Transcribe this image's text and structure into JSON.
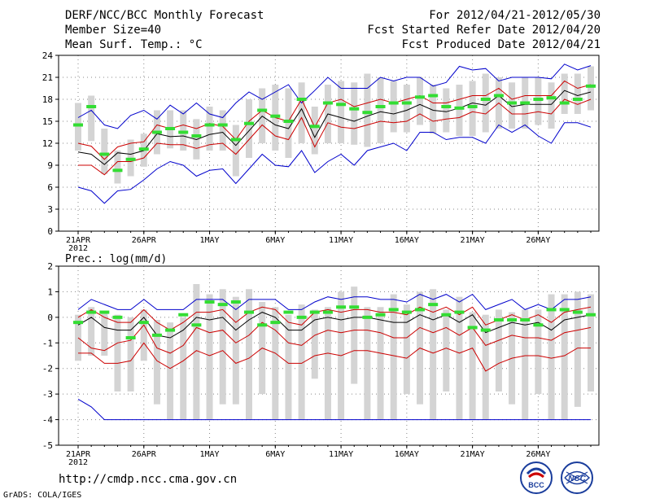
{
  "header": {
    "left": [
      "DERF/NCC/BCC Monthly Forecast",
      "Member Size=40",
      "Mean Surf. Temp.: °C"
    ],
    "right": [
      "For 2012/04/21-2012/05/30",
      "Fcst Started Refer Date 2012/04/20",
      "Fcst Produced Date 2012/04/21"
    ]
  },
  "footer": {
    "url": "http://cmdp.ncc.cma.gov.cn",
    "credit": "GrADS: COLA/IGES"
  },
  "logos": {
    "bcc": "BCC",
    "ncc": "NCC"
  },
  "colors": {
    "max": "#0000cc",
    "min": "#0000cc",
    "band": "#cc0000",
    "mean": "#000000",
    "obs": "#33dd33",
    "box": "#d4d4d4"
  },
  "chart_data": [
    {
      "type": "line",
      "title": "Mean Surf. Temp.: °C",
      "ylabel": "",
      "ylim": [
        0,
        24
      ],
      "yticks": [
        0,
        3,
        6,
        9,
        12,
        15,
        18,
        21,
        24
      ],
      "xticks": [
        {
          "day": 0,
          "label": "21APR",
          "sub": "2012"
        },
        {
          "day": 5,
          "label": "26APR"
        },
        {
          "day": 10,
          "label": "1MAY"
        },
        {
          "day": 15,
          "label": "6MAY"
        },
        {
          "day": 20,
          "label": "11MAY"
        },
        {
          "day": 25,
          "label": "16MAY"
        },
        {
          "day": 30,
          "label": "21MAY"
        },
        {
          "day": 35,
          "label": "26MAY"
        }
      ],
      "grid": true,
      "series": [
        {
          "name": "max",
          "values": [
            15.5,
            16.5,
            14.5,
            14.0,
            15.8,
            16.5,
            15.3,
            17.2,
            16.0,
            17.5,
            16.0,
            15.5,
            17.5,
            19.0,
            18.0,
            19.0,
            20.0,
            17.5,
            19.2,
            21.0,
            19.5,
            19.5,
            19.5,
            21.0,
            20.5,
            21.0,
            21.0,
            19.8,
            20.3,
            22.5,
            22.0,
            22.2,
            20.5,
            21.0,
            21.0,
            21.0,
            20.8,
            22.8,
            22.0,
            22.6
          ]
        },
        {
          "name": "min",
          "values": [
            6.0,
            5.5,
            3.8,
            5.5,
            5.7,
            7.0,
            8.5,
            9.5,
            9.0,
            7.5,
            8.3,
            8.5,
            6.5,
            8.5,
            10.5,
            9.0,
            8.8,
            11.0,
            8.0,
            9.5,
            10.5,
            9.0,
            11.0,
            11.5,
            12.0,
            11.0,
            13.5,
            13.5,
            12.5,
            12.8,
            12.8,
            12.0,
            14.5,
            13.5,
            14.5,
            13.0,
            12.0,
            14.8,
            14.8,
            14.2
          ]
        },
        {
          "name": "upper",
          "values": [
            12.0,
            11.6,
            9.8,
            11.5,
            12.0,
            12.2,
            14.5,
            14.0,
            14.5,
            14.0,
            14.7,
            14.3,
            12.5,
            15.0,
            16.5,
            15.5,
            15.0,
            18.0,
            14.2,
            17.5,
            18.0,
            17.0,
            17.5,
            18.0,
            17.5,
            18.0,
            18.5,
            17.5,
            17.5,
            18.0,
            18.5,
            18.5,
            19.5,
            18.0,
            18.5,
            18.5,
            18.5,
            20.5,
            19.5,
            20.0
          ]
        },
        {
          "name": "mean",
          "values": [
            10.8,
            10.5,
            9.1,
            10.7,
            10.5,
            11.0,
            13.3,
            12.9,
            13.0,
            12.5,
            13.2,
            13.5,
            11.7,
            13.7,
            15.7,
            14.5,
            14.0,
            16.7,
            12.8,
            16.0,
            15.5,
            15.0,
            15.7,
            16.3,
            16.0,
            16.5,
            17.3,
            16.5,
            16.3,
            16.8,
            17.5,
            17.2,
            18.5,
            17.0,
            17.3,
            17.3,
            17.3,
            19.2,
            18.5,
            19.0
          ]
        },
        {
          "name": "lower",
          "values": [
            9.0,
            9.0,
            7.7,
            9.5,
            9.5,
            10.0,
            12.0,
            11.8,
            11.8,
            11.3,
            11.8,
            12.0,
            10.5,
            12.5,
            14.5,
            13.0,
            12.5,
            15.5,
            11.5,
            14.8,
            14.2,
            14.0,
            14.5,
            15.0,
            14.8,
            15.0,
            16.0,
            15.0,
            15.3,
            15.5,
            16.3,
            16.0,
            17.5,
            16.0,
            16.0,
            16.3,
            16.0,
            18.0,
            17.3,
            18.0
          ]
        },
        {
          "name": "obs",
          "values": [
            14.5,
            17.0,
            10.5,
            8.3,
            9.8,
            11.2,
            13.5,
            14.0,
            13.5,
            13.0,
            14.5,
            14.5,
            12.5,
            14.7,
            16.5,
            15.7,
            15.0,
            18.0,
            14.3,
            17.5,
            17.3,
            16.7,
            16.2,
            17.0,
            17.5,
            17.5,
            18.3,
            18.5,
            17.0,
            16.8,
            17.0,
            18.0,
            18.5,
            17.5,
            17.5,
            18.0,
            18.2,
            17.5,
            18.0,
            19.8
          ]
        },
        {
          "name": "box_high",
          "values": [
            17.5,
            18.5,
            14.0,
            11.0,
            12.5,
            13.3,
            16.5,
            16.5,
            16.5,
            15.3,
            17.0,
            16.5,
            14.5,
            18.0,
            19.5,
            20.0,
            19.5,
            20.3,
            17.0,
            20.0,
            20.5,
            20.3,
            21.5,
            21.0,
            20.5,
            20.0,
            21.0,
            20.0,
            19.5,
            20.0,
            20.5,
            21.5,
            21.0,
            20.3,
            21.0,
            21.0,
            20.3,
            21.5,
            21.5,
            22.5
          ]
        },
        {
          "name": "box_low",
          "values": [
            11.0,
            12.3,
            7.8,
            6.5,
            7.5,
            8.8,
            10.5,
            11.3,
            11.0,
            9.8,
            11.0,
            11.0,
            7.5,
            10.0,
            12.0,
            11.0,
            10.0,
            12.0,
            10.5,
            12.0,
            12.0,
            11.8,
            11.5,
            12.0,
            13.5,
            13.5,
            14.5,
            13.3,
            13.5,
            13.0,
            13.0,
            13.5,
            14.0,
            14.0,
            14.0,
            14.5,
            14.0,
            16.0,
            16.0,
            16.5
          ]
        }
      ]
    },
    {
      "type": "line",
      "title": "Prec.: log(mm/d)",
      "ylabel": "",
      "ylim": [
        -5,
        2
      ],
      "yticks": [
        -5,
        -4,
        -3,
        -2,
        -1,
        0,
        1,
        2
      ],
      "xticks": [
        {
          "day": 0,
          "label": "21APR",
          "sub": "2012"
        },
        {
          "day": 5,
          "label": "26APR"
        },
        {
          "day": 10,
          "label": "1MAY"
        },
        {
          "day": 15,
          "label": "6MAY"
        },
        {
          "day": 20,
          "label": "11MAY"
        },
        {
          "day": 25,
          "label": "16MAY"
        },
        {
          "day": 30,
          "label": "21MAY"
        },
        {
          "day": 35,
          "label": "26MAY"
        }
      ],
      "grid": true,
      "series": [
        {
          "name": "max",
          "values": [
            0.3,
            0.7,
            0.5,
            0.3,
            0.3,
            0.7,
            0.3,
            0.3,
            0.3,
            0.7,
            0.7,
            0.7,
            0.3,
            0.7,
            0.7,
            0.7,
            0.3,
            0.3,
            0.6,
            0.8,
            0.7,
            0.8,
            0.8,
            0.7,
            0.7,
            0.6,
            0.9,
            0.7,
            0.9,
            0.6,
            0.9,
            0.3,
            0.5,
            0.7,
            0.3,
            0.5,
            0.3,
            0.7,
            0.7,
            0.8
          ]
        },
        {
          "name": "min",
          "values": [
            -3.2,
            -3.5,
            -4.0,
            -4.0,
            -4.0,
            -4.0,
            -4.0,
            -4.0,
            -4.0,
            -4.0,
            -4.0,
            -4.0,
            -4.0,
            -4.0,
            -4.0,
            -4.0,
            -4.0,
            -4.0,
            -4.0,
            -4.0,
            -4.0,
            -4.0,
            -4.0,
            -4.0,
            -4.0,
            -4.0,
            -4.0,
            -4.0,
            -4.0,
            -4.0,
            -4.0,
            -4.0,
            -4.0,
            -4.0,
            -4.0,
            -4.0,
            -4.0,
            -4.0,
            -4.0,
            -4.0
          ]
        },
        {
          "name": "upper",
          "values": [
            0.0,
            0.3,
            0.0,
            -0.2,
            -0.2,
            0.3,
            -0.2,
            -0.5,
            -0.2,
            0.2,
            0.2,
            0.3,
            -0.2,
            0.2,
            0.4,
            0.3,
            -0.2,
            -0.3,
            0.2,
            0.3,
            0.2,
            0.3,
            0.3,
            0.2,
            0.2,
            0.1,
            0.4,
            0.2,
            0.4,
            0.1,
            0.4,
            -0.3,
            -0.1,
            0.1,
            -0.1,
            0.1,
            -0.2,
            0.2,
            0.3,
            0.4
          ]
        },
        {
          "name": "mean",
          "values": [
            -0.3,
            0.0,
            -0.4,
            -0.5,
            -0.5,
            0.0,
            -0.7,
            -0.8,
            -0.5,
            0.0,
            -0.1,
            0.0,
            -0.5,
            -0.1,
            0.2,
            0.0,
            -0.5,
            -0.5,
            -0.1,
            0.0,
            -0.1,
            0.0,
            0.0,
            -0.1,
            -0.2,
            -0.2,
            0.1,
            -0.1,
            0.1,
            -0.2,
            0.1,
            -0.6,
            -0.4,
            -0.2,
            -0.3,
            -0.2,
            -0.5,
            -0.1,
            0.0,
            0.1
          ]
        },
        {
          "name": "lower",
          "values": [
            -0.8,
            -1.2,
            -1.3,
            -1.0,
            -0.9,
            -0.3,
            -1.2,
            -1.4,
            -1.1,
            -0.4,
            -0.6,
            -0.5,
            -1.0,
            -0.7,
            -0.2,
            -0.5,
            -1.0,
            -1.1,
            -0.7,
            -0.5,
            -0.6,
            -0.5,
            -0.5,
            -0.6,
            -0.8,
            -0.8,
            -0.4,
            -0.6,
            -0.4,
            -0.7,
            -0.4,
            -1.1,
            -0.9,
            -0.7,
            -0.8,
            -0.8,
            -0.9,
            -0.6,
            -0.5,
            -0.4
          ]
        },
        {
          "name": "lowest",
          "values": [
            -1.4,
            -1.4,
            -1.8,
            -1.8,
            -1.7,
            -1.0,
            -1.7,
            -2.0,
            -1.7,
            -1.3,
            -1.5,
            -1.3,
            -1.8,
            -1.6,
            -1.2,
            -1.4,
            -1.8,
            -1.8,
            -1.5,
            -1.4,
            -1.5,
            -1.3,
            -1.3,
            -1.4,
            -1.5,
            -1.6,
            -1.2,
            -1.4,
            -1.2,
            -1.4,
            -1.2,
            -2.1,
            -1.8,
            -1.6,
            -1.5,
            -1.5,
            -1.6,
            -1.5,
            -1.2,
            -1.2
          ]
        },
        {
          "name": "obs",
          "values": [
            -0.2,
            0.2,
            0.2,
            0.0,
            -0.8,
            -0.2,
            -0.7,
            -0.5,
            0.1,
            -0.3,
            0.6,
            0.5,
            0.6,
            0.2,
            -0.3,
            -0.2,
            0.2,
            0.0,
            0.2,
            0.2,
            0.4,
            0.4,
            0.0,
            0.1,
            0.3,
            0.2,
            0.3,
            0.5,
            0.1,
            0.2,
            -0.4,
            -0.5,
            -0.1,
            -0.1,
            -0.1,
            -0.3,
            0.3,
            0.3,
            0.2,
            0.1
          ]
        },
        {
          "name": "box_high",
          "values": [
            0.1,
            0.4,
            0.2,
            0.1,
            0.0,
            0.3,
            -0.1,
            -0.2,
            0.0,
            1.3,
            0.9,
            1.1,
            0.8,
            1.1,
            0.6,
            0.4,
            0.1,
            0.5,
            0.3,
            0.4,
            1.0,
            1.2,
            0.4,
            0.4,
            0.9,
            0.5,
            1.0,
            1.1,
            0.3,
            0.8,
            0.2,
            0.1,
            0.3,
            0.2,
            0.3,
            0.3,
            0.9,
            0.9,
            1.0,
            0.9
          ]
        },
        {
          "name": "box_low",
          "values": [
            -1.7,
            -1.5,
            -1.5,
            -2.9,
            -2.9,
            -1.7,
            -3.4,
            -4.0,
            -4.0,
            -4.0,
            -4.0,
            -3.4,
            -3.4,
            -4.0,
            -3.0,
            -4.0,
            -4.0,
            -4.0,
            -2.4,
            -4.0,
            -4.0,
            -2.6,
            -4.0,
            -4.0,
            -4.0,
            -3.0,
            -3.4,
            -4.0,
            -2.9,
            -4.0,
            -4.0,
            -4.0,
            -2.9,
            -3.4,
            -4.0,
            -3.0,
            -4.0,
            -4.0,
            -3.5,
            -2.9
          ]
        }
      ]
    }
  ]
}
